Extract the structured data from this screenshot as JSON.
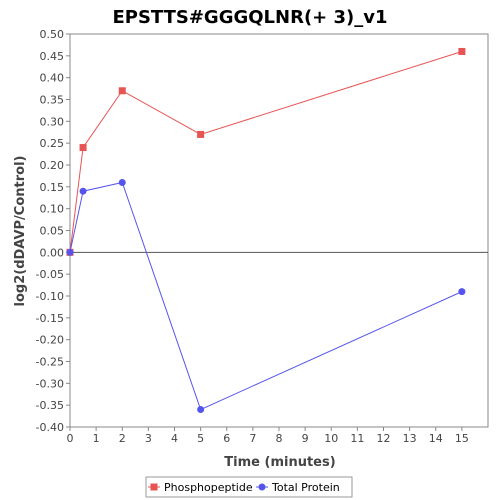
{
  "chart_data": {
    "type": "line",
    "title": "EPSTTS#GGGQLNR(+ 3)_v1",
    "xlabel": "Time (minutes)",
    "ylabel": "log2(dDAVP/Control)",
    "xlim": [
      0,
      16
    ],
    "ylim": [
      -0.4,
      0.5
    ],
    "x_ticks": [
      "0",
      "1",
      "2",
      "3",
      "4",
      "5",
      "6",
      "7",
      "8",
      "9",
      "10",
      "11",
      "12",
      "13",
      "14",
      "15"
    ],
    "y_ticks": [
      "0.50",
      "0.45",
      "0.40",
      "0.35",
      "0.30",
      "0.25",
      "0.20",
      "0.15",
      "0.10",
      "0.05",
      "0.00",
      "-0.05",
      "-0.10",
      "-0.15",
      "-0.20",
      "-0.25",
      "-0.30",
      "-0.35",
      "-0.40"
    ],
    "grid": false,
    "legend_position": "bottom",
    "series": [
      {
        "name": "Phosphopeptide",
        "color": "#e85454",
        "marker": "square",
        "x": [
          0,
          0.5,
          2,
          5,
          15
        ],
        "y": [
          0.0,
          0.24,
          0.37,
          0.27,
          0.46
        ]
      },
      {
        "name": "Total Protein",
        "color": "#5555ee",
        "marker": "circle",
        "x": [
          0,
          0.5,
          2,
          5,
          15
        ],
        "y": [
          0.0,
          0.14,
          0.16,
          -0.36,
          -0.09
        ]
      }
    ]
  }
}
